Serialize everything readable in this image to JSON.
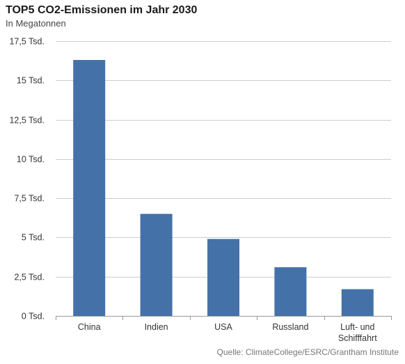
{
  "title": "TOP5 CO2-Emissionen im Jahr 2030",
  "subtitle": "In Megatonnen",
  "source": "Quelle: ClimateCollege/ESRC/Grantham Institute",
  "colors": {
    "bar": "#4472a8",
    "grid": "#cccccc",
    "axis": "#999999"
  },
  "chart_data": {
    "type": "bar",
    "categories": [
      [
        "China"
      ],
      [
        "Indien"
      ],
      [
        "USA"
      ],
      [
        "Russland"
      ],
      [
        "Luft- und",
        "Schifffahrt"
      ]
    ],
    "values": [
      16300,
      6500,
      4900,
      3100,
      1700
    ],
    "ylim": [
      0,
      17500
    ],
    "yticks": [
      0,
      2500,
      5000,
      7500,
      10000,
      12500,
      15000,
      17500
    ],
    "ytick_labels": [
      "0 Tsd.",
      "2,5 Tsd.",
      "5 Tsd.",
      "7,5 Tsd.",
      "10 Tsd.",
      "12,5 Tsd.",
      "15 Tsd.",
      "17,5 Tsd."
    ],
    "grid": true,
    "xlabel": "",
    "ylabel": ""
  }
}
